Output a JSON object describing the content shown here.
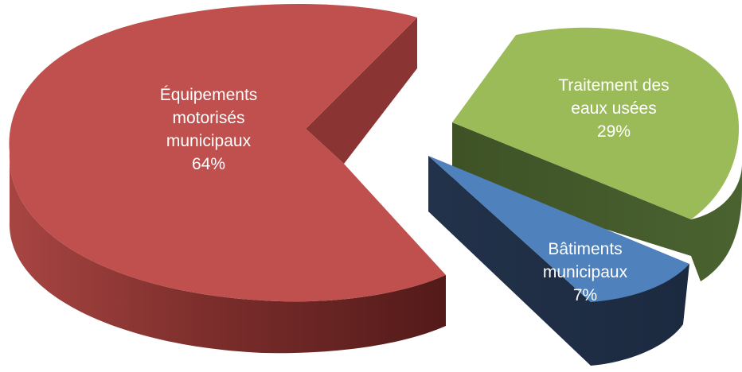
{
  "chart_data": {
    "type": "pie",
    "title": "",
    "style": "3d-exploded",
    "slices": [
      {
        "label": "Équipements motorisés municipaux",
        "value": 64,
        "value_label": "64%",
        "color": "#c0504d",
        "label_lines": [
          "Équipements",
          "motorisés",
          "municipaux",
          "64%"
        ]
      },
      {
        "label": "Traitement des eaux usées",
        "value": 29,
        "value_label": "29%",
        "color": "#9bbb59",
        "label_lines": [
          "Traitement des",
          "eaux usées",
          "29%"
        ]
      },
      {
        "label": "Bâtiments municipaux",
        "value": 7,
        "value_label": "7%",
        "color": "#4f81bd",
        "label_lines": [
          "Bâtiments",
          "municipaux",
          "7%"
        ]
      }
    ]
  }
}
